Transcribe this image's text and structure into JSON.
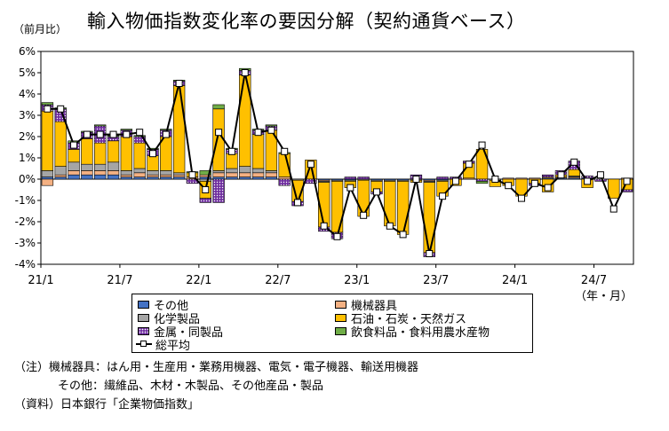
{
  "chart_data": {
    "type": "bar",
    "stacked": true,
    "title": "輸入物価指数変化率の要因分解（契約通貨ベース）",
    "y_unit_label": "（前月比）",
    "x_unit_label": "（年・月）",
    "ylim": [
      -4,
      6
    ],
    "y_ticks": [
      "6%",
      "5%",
      "4%",
      "3%",
      "2%",
      "1%",
      "0%",
      "-1%",
      "-2%",
      "-3%",
      "-4%"
    ],
    "x_tick_labels": [
      "21/1",
      "21/7",
      "22/1",
      "22/7",
      "23/1",
      "23/7",
      "24/1",
      "24/7"
    ],
    "categories": [
      "21/1",
      "21/2",
      "21/3",
      "21/4",
      "21/5",
      "21/6",
      "21/7",
      "21/8",
      "21/9",
      "21/10",
      "21/11",
      "21/12",
      "22/1",
      "22/2",
      "22/3",
      "22/4",
      "22/5",
      "22/6",
      "22/7",
      "22/8",
      "22/9",
      "22/10",
      "22/11",
      "22/12",
      "23/1",
      "23/2",
      "23/3",
      "23/4",
      "23/5",
      "23/6",
      "23/7",
      "23/8",
      "23/9",
      "23/10",
      "23/11",
      "23/12",
      "24/1",
      "24/2",
      "24/3",
      "24/4",
      "24/5",
      "24/6",
      "24/7",
      "24/8",
      "24/9"
    ],
    "series": [
      {
        "name": "その他",
        "color": "#4472c4",
        "pattern": "solid",
        "values": [
          0.1,
          0.1,
          0.2,
          0.2,
          0.2,
          0.2,
          0.1,
          0.1,
          0.1,
          0.1,
          0.1,
          0.0,
          0.1,
          0.1,
          0.1,
          0.1,
          0.1,
          0.1,
          0.0,
          0.0,
          0.0,
          -0.05,
          -0.05,
          -0.05,
          0.0,
          -0.05,
          -0.05,
          -0.05,
          0.0,
          -0.05,
          -0.05,
          0.0,
          0.0,
          0.0,
          0.0,
          0.0,
          0.0,
          0.0,
          0.05,
          0.05,
          0.05,
          0.05,
          0.0,
          0.0,
          0.0
        ]
      },
      {
        "name": "機械器具",
        "color": "#f4b183",
        "pattern": "solid",
        "values": [
          -0.3,
          0.1,
          0.2,
          0.2,
          0.2,
          0.2,
          0.1,
          0.2,
          0.1,
          0.1,
          0.1,
          0.1,
          0.1,
          0.2,
          0.2,
          0.2,
          0.2,
          0.2,
          0.1,
          0.0,
          0.0,
          -0.05,
          0.0,
          0.0,
          0.0,
          0.0,
          0.0,
          0.0,
          0.0,
          -0.05,
          0.0,
          0.0,
          0.05,
          0.0,
          0.0,
          0.05,
          0.05,
          0.05,
          0.05,
          0.05,
          0.05,
          0.0,
          0.0,
          0.0,
          0.05
        ]
      },
      {
        "name": "化学製品",
        "color": "#a5a5a5",
        "pattern": "solid",
        "values": [
          0.3,
          0.4,
          0.4,
          0.3,
          0.3,
          0.4,
          0.2,
          0.2,
          0.2,
          0.2,
          0.1,
          0.0,
          -0.1,
          0.1,
          0.2,
          0.3,
          0.2,
          0.1,
          0.0,
          -0.05,
          0.0,
          -0.05,
          -0.05,
          -0.05,
          -0.05,
          -0.05,
          -0.05,
          -0.05,
          -0.05,
          -0.05,
          -0.05,
          0.0,
          0.0,
          0.0,
          -0.05,
          0.0,
          0.0,
          0.0,
          0.0,
          0.0,
          0.05,
          0.0,
          0.0,
          0.0,
          0.0
        ]
      },
      {
        "name": "石油・石炭・天然ガス",
        "color": "#ffc000",
        "pattern": "solid",
        "values": [
          2.8,
          2.1,
          0.6,
          1.2,
          1.0,
          1.0,
          1.6,
          1.2,
          0.7,
          1.6,
          4.1,
          0.2,
          -0.8,
          2.9,
          0.7,
          4.3,
          1.6,
          1.9,
          1.1,
          -1.0,
          0.9,
          -2.1,
          -2.4,
          -0.3,
          -1.7,
          -0.5,
          -2.1,
          -2.5,
          -0.1,
          -3.3,
          -0.7,
          -0.3,
          0.7,
          1.4,
          -0.3,
          -0.3,
          -0.8,
          -0.2,
          -0.6,
          0.1,
          0.3,
          -0.4,
          0.0,
          -0.9,
          -0.5
        ]
      },
      {
        "name": "金属・同製品",
        "color": "#7030a0",
        "pattern": "dots",
        "values": [
          0.3,
          0.6,
          0.3,
          0.3,
          0.8,
          0.2,
          0.3,
          0.3,
          0.3,
          0.3,
          0.2,
          -0.2,
          -0.2,
          -1.1,
          0.2,
          0.2,
          0.2,
          0.2,
          -0.3,
          -0.2,
          -0.2,
          -0.2,
          -0.3,
          0.1,
          0.1,
          -0.1,
          0.0,
          0.0,
          0.2,
          -0.2,
          0.1,
          0.1,
          0.1,
          -0.1,
          0.0,
          0.0,
          0.0,
          -0.1,
          0.1,
          0.2,
          0.4,
          0.1,
          -0.1,
          0.0,
          -0.1
        ]
      },
      {
        "name": "飲食料品・食料用農水産物",
        "color": "#70ad47",
        "pattern": "solid",
        "values": [
          0.1,
          0.05,
          0.1,
          0.05,
          0.05,
          0.05,
          0.05,
          0.05,
          0.05,
          0.05,
          0.05,
          0.05,
          0.2,
          0.2,
          0.05,
          0.1,
          0.05,
          0.05,
          0.05,
          0.0,
          0.0,
          0.0,
          0.0,
          0.0,
          0.0,
          0.0,
          0.0,
          0.0,
          0.0,
          0.0,
          0.0,
          0.0,
          0.0,
          -0.1,
          0.0,
          0.0,
          0.0,
          0.0,
          0.0,
          0.0,
          0.0,
          0.0,
          0.0,
          0.0,
          0.0
        ]
      }
    ],
    "line_series": {
      "name": "総平均",
      "values": [
        3.3,
        3.3,
        1.6,
        2.1,
        2.1,
        2.1,
        2.1,
        2.2,
        1.2,
        2.1,
        4.5,
        0.2,
        -0.5,
        2.2,
        1.3,
        5.0,
        2.2,
        2.3,
        1.3,
        -1.1,
        0.7,
        -2.2,
        -2.7,
        -0.4,
        -1.7,
        -0.6,
        -2.2,
        -2.6,
        0.0,
        -3.5,
        -0.8,
        -0.1,
        0.7,
        1.6,
        0.0,
        -0.3,
        -0.9,
        -0.2,
        -0.4,
        0.2,
        0.8,
        -0.1,
        0.2,
        -1.4,
        -0.1
      ]
    },
    "legend_placement": "bottom"
  },
  "notes": {
    "line1": "（注）機械器具：はん用・生産用・業務用機器、電気・電子機器、輸送用機器",
    "line2": "その他：繊維品、木材・木製品、その他産品・製品",
    "line3": "（資料）日本銀行「企業物価指数」"
  }
}
